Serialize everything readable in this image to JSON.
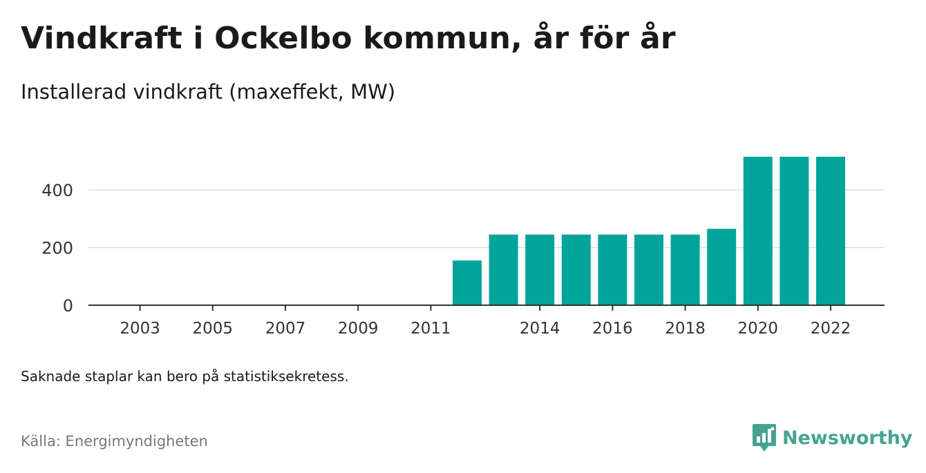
{
  "title": "Vindkraft i Ockelbo kommun, år för år",
  "subtitle": "Installerad vindkraft (maxeffekt, MW)",
  "note": "Saknade staplar kan bero på statistiksekretess.",
  "source": "Källa: Energimyndigheten",
  "brand": {
    "name": "Newsworthy",
    "icon": "newsworthy-logo-icon",
    "color": "#46a393"
  },
  "colors": {
    "bar": "#00a49a",
    "grid": "#dddddd",
    "axis": "#333333"
  },
  "chart_data": {
    "type": "bar",
    "title": "Vindkraft i Ockelbo kommun, år för år",
    "subtitle": "Installerad vindkraft (maxeffekt, MW)",
    "x": [
      2002,
      2003,
      2004,
      2005,
      2006,
      2007,
      2008,
      2009,
      2010,
      2011,
      2012,
      2013,
      2014,
      2015,
      2016,
      2017,
      2018,
      2019,
      2020,
      2021,
      2022
    ],
    "values": [
      0,
      0,
      0,
      0,
      0,
      0,
      0,
      0,
      0,
      0,
      155,
      245,
      245,
      245,
      245,
      245,
      245,
      265,
      515,
      515,
      515
    ],
    "xticks": [
      "2003",
      "2005",
      "2007",
      "2009",
      "2011",
      "2014",
      "2016",
      "2018",
      "2020",
      "2022"
    ],
    "yticks": [
      "0",
      "200",
      "400"
    ],
    "ylim": [
      0,
      520
    ],
    "grid": true,
    "legend": "none"
  }
}
